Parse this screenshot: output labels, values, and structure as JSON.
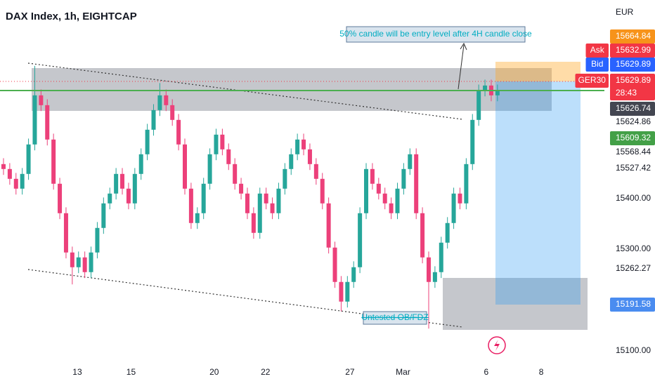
{
  "chart_data": {
    "type": "candlestick",
    "title": "DAX Index, 1h, EIGHTCAP",
    "currency": "EUR",
    "x": [
      0,
      1,
      2,
      3,
      4,
      5,
      6,
      7,
      8,
      9,
      10,
      11,
      12,
      13,
      14,
      15,
      16,
      17,
      18,
      19,
      20,
      21,
      22,
      23,
      24,
      25,
      26,
      27,
      28,
      29,
      30,
      31,
      32,
      33,
      34,
      35,
      36,
      37,
      38,
      39,
      40,
      41,
      42,
      43,
      44,
      45,
      46,
      47,
      48,
      49,
      50,
      51,
      52,
      53,
      54,
      55,
      56,
      57,
      58,
      59,
      60,
      61,
      62,
      63,
      64,
      65,
      66,
      67,
      68,
      69,
      70,
      71,
      72,
      73,
      74,
      75,
      76,
      77,
      78,
      79
    ],
    "open": [
      15480,
      15470,
      15450,
      15430,
      15460,
      15520,
      15620,
      15600,
      15530,
      15440,
      15380,
      15300,
      15270,
      15290,
      15260,
      15300,
      15350,
      15400,
      15420,
      15460,
      15430,
      15400,
      15460,
      15500,
      15550,
      15590,
      15620,
      15600,
      15570,
      15520,
      15430,
      15360,
      15380,
      15440,
      15500,
      15540,
      15510,
      15480,
      15440,
      15420,
      15380,
      15340,
      15420,
      15400,
      15380,
      15430,
      15470,
      15500,
      15530,
      15510,
      15480,
      15450,
      15400,
      15310,
      15240,
      15200,
      15240,
      15270,
      15380,
      15470,
      15440,
      15420,
      15400,
      15380,
      15430,
      15470,
      15500,
      15380,
      15290,
      15240,
      15260,
      15320,
      15360,
      15420,
      15400,
      15480,
      15570,
      15630,
      15640,
      15620
    ],
    "high": [
      15492,
      15482,
      15462,
      15472,
      15532,
      15680,
      15632,
      15612,
      15542,
      15452,
      15392,
      15312,
      15302,
      15302,
      15312,
      15362,
      15412,
      15432,
      15472,
      15472,
      15442,
      15472,
      15512,
      15562,
      15602,
      15645,
      15632,
      15612,
      15582,
      15532,
      15442,
      15392,
      15452,
      15512,
      15552,
      15552,
      15522,
      15492,
      15452,
      15432,
      15392,
      15432,
      15432,
      15412,
      15442,
      15482,
      15512,
      15542,
      15542,
      15522,
      15492,
      15462,
      15412,
      15322,
      15252,
      15252,
      15282,
      15392,
      15482,
      15482,
      15452,
      15432,
      15412,
      15442,
      15482,
      15512,
      15512,
      15392,
      15302,
      15272,
      15332,
      15372,
      15432,
      15432,
      15492,
      15582,
      15642,
      15652,
      15652,
      15642
    ],
    "low": [
      15458,
      15438,
      15418,
      15418,
      15448,
      15508,
      15588,
      15518,
      15428,
      15368,
      15288,
      15235,
      15258,
      15248,
      15248,
      15288,
      15338,
      15388,
      15408,
      15418,
      15388,
      15388,
      15448,
      15488,
      15538,
      15578,
      15588,
      15558,
      15508,
      15418,
      15348,
      15348,
      15368,
      15428,
      15488,
      15498,
      15468,
      15428,
      15408,
      15368,
      15328,
      15328,
      15388,
      15368,
      15368,
      15418,
      15458,
      15488,
      15498,
      15468,
      15438,
      15388,
      15298,
      15228,
      15180,
      15188,
      15228,
      15258,
      15368,
      15428,
      15408,
      15388,
      15368,
      15368,
      15418,
      15458,
      15368,
      15278,
      15145,
      15228,
      15248,
      15308,
      15348,
      15388,
      15388,
      15468,
      15558,
      15618,
      15608,
      15608
    ],
    "close": [
      15470,
      15450,
      15430,
      15460,
      15520,
      15620,
      15600,
      15530,
      15440,
      15380,
      15300,
      15270,
      15290,
      15260,
      15300,
      15350,
      15400,
      15420,
      15460,
      15430,
      15400,
      15460,
      15500,
      15550,
      15590,
      15620,
      15600,
      15570,
      15520,
      15430,
      15360,
      15380,
      15440,
      15500,
      15540,
      15510,
      15480,
      15440,
      15420,
      15380,
      15340,
      15420,
      15400,
      15380,
      15430,
      15470,
      15500,
      15530,
      15510,
      15480,
      15450,
      15400,
      15310,
      15240,
      15200,
      15240,
      15270,
      15380,
      15470,
      15440,
      15420,
      15400,
      15380,
      15430,
      15470,
      15500,
      15380,
      15290,
      15240,
      15260,
      15320,
      15360,
      15420,
      15400,
      15480,
      15570,
      15630,
      15640,
      15620,
      15630
    ],
    "up_color": "#26a69a",
    "down_color": "#ec407a",
    "xlim": [
      -0.56,
      96.1
    ],
    "xticks": [
      {
        "value": 11.8,
        "label": "13"
      },
      {
        "value": 20.4,
        "label": "15"
      },
      {
        "value": 33.7,
        "label": "20"
      },
      {
        "value": 41.9,
        "label": "22"
      },
      {
        "value": 55.4,
        "label": "27"
      },
      {
        "value": 63.9,
        "label": "Mar"
      },
      {
        "value": 77.2,
        "label": "6"
      },
      {
        "value": 86.0,
        "label": "8"
      }
    ],
    "ylim": [
      15071,
      15757
    ],
    "yticks": [
      15624.86,
      15568.44,
      15527.42,
      {
        "value": 15400,
        "label": "15400.00"
      },
      {
        "value": 15300,
        "label": "15300.00"
      },
      15262.27,
      {
        "value": 15100,
        "label": "15100.00"
      }
    ],
    "price_markers": [
      {
        "value": 15664.84,
        "color": "#f7931a"
      },
      {
        "tag": "Ask",
        "value": 15632.99,
        "color": "#f23645"
      },
      {
        "tag": "Bid",
        "value": 15629.89,
        "color": "#2962ff"
      },
      {
        "tag": "GER30",
        "value": 15629.89,
        "countdown": "28:43",
        "color": "#f23645"
      },
      {
        "value": 15626.74,
        "color": "#434651"
      },
      {
        "value": 15609.32,
        "color": "#43a047"
      },
      {
        "value": 15191.58,
        "color": "#4a8cf0"
      }
    ],
    "annotations": [
      "50% candle will be entry level after 4H candle close",
      "Untested OB/FDZ"
    ]
  }
}
